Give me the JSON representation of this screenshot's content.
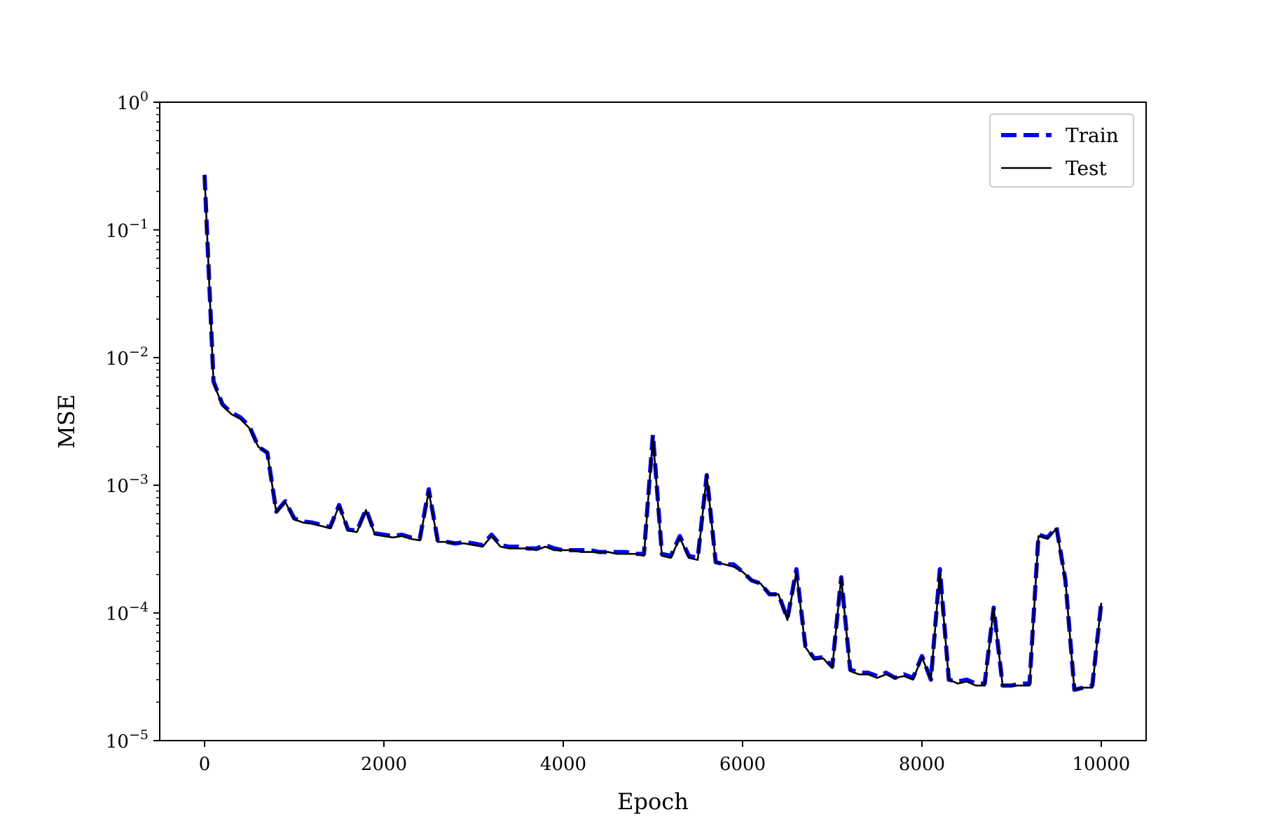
{
  "chart_data": {
    "type": "line",
    "title": "",
    "xlabel": "Epoch",
    "ylabel": "MSE",
    "xlim": [
      -500,
      10500
    ],
    "ylim": [
      1e-05,
      1
    ],
    "yscale": "log",
    "grid": false,
    "legend_position": "top-right",
    "xticks": [
      0,
      2000,
      4000,
      6000,
      8000,
      10000
    ],
    "xtick_labels": [
      "0",
      "2000",
      "4000",
      "6000",
      "8000",
      "10000"
    ],
    "yticks": [
      {
        "value": 1,
        "base": "10",
        "exp": "0"
      },
      {
        "value": 0.1,
        "base": "10",
        "exp": "−1"
      },
      {
        "value": 0.01,
        "base": "10",
        "exp": "−2"
      },
      {
        "value": 0.001,
        "base": "10",
        "exp": "−3"
      },
      {
        "value": 0.0001,
        "base": "10",
        "exp": "−4"
      },
      {
        "value": 1e-05,
        "base": "10",
        "exp": "−5"
      }
    ],
    "x": [
      0,
      100,
      200,
      300,
      400,
      500,
      600,
      700,
      800,
      900,
      1000,
      1100,
      1200,
      1300,
      1400,
      1500,
      1600,
      1700,
      1800,
      1900,
      2000,
      2100,
      2200,
      2300,
      2400,
      2500,
      2600,
      2700,
      2800,
      2900,
      3000,
      3100,
      3200,
      3300,
      3400,
      3500,
      3600,
      3700,
      3800,
      3900,
      4000,
      4100,
      4200,
      4300,
      4400,
      4500,
      4600,
      4700,
      4800,
      4900,
      5000,
      5100,
      5200,
      5300,
      5400,
      5500,
      5600,
      5700,
      5800,
      5900,
      6000,
      6100,
      6200,
      6300,
      6400,
      6500,
      6600,
      6700,
      6800,
      6900,
      7000,
      7100,
      7200,
      7300,
      7400,
      7500,
      7600,
      7700,
      7800,
      7900,
      8000,
      8100,
      8200,
      8300,
      8400,
      8500,
      8600,
      8700,
      8800,
      8900,
      9000,
      9100,
      9200,
      9300,
      9400,
      9500,
      9600,
      9700,
      9800,
      9900,
      10000
    ],
    "series": [
      {
        "name": "Train",
        "color": "#0000ff",
        "style": "dashed",
        "values": [
          0.27,
          0.0065,
          0.0043,
          0.0037,
          0.0034,
          0.0029,
          0.002,
          0.0018,
          0.00062,
          0.00075,
          0.00055,
          0.00052,
          0.00051,
          0.00049,
          0.00047,
          0.0007,
          0.00045,
          0.00044,
          0.00065,
          0.00042,
          0.00041,
          0.0004,
          0.00041,
          0.00039,
          0.00038,
          0.00093,
          0.00037,
          0.00036,
          0.00035,
          0.00036,
          0.00035,
          0.00034,
          0.00041,
          0.00034,
          0.00033,
          0.00033,
          0.00032,
          0.00032,
          0.00034,
          0.00032,
          0.00031,
          0.00031,
          0.00031,
          0.00031,
          0.0003,
          0.0003,
          0.0003,
          0.0003,
          0.00029,
          0.00029,
          0.0025,
          0.00029,
          0.00028,
          0.0004,
          0.00028,
          0.00027,
          0.0012,
          0.00025,
          0.00024,
          0.00024,
          0.00021,
          0.00018,
          0.00017,
          0.00014,
          0.00014,
          9e-05,
          0.00022,
          5.5e-05,
          4.4e-05,
          4.5e-05,
          3.8e-05,
          0.00019,
          3.6e-05,
          3.4e-05,
          3.4e-05,
          3.2e-05,
          3.4e-05,
          3.1e-05,
          3.3e-05,
          3.1e-05,
          4.6e-05,
          3e-05,
          0.00022,
          3e-05,
          2.9e-05,
          3e-05,
          2.8e-05,
          2.8e-05,
          0.00011,
          2.7e-05,
          2.7e-05,
          2.8e-05,
          2.8e-05,
          0.00041,
          0.00039,
          0.00047,
          0.00018,
          2.5e-05,
          2.6e-05,
          2.7e-05,
          0.00012
        ]
      },
      {
        "name": "Test",
        "color": "#000000",
        "style": "solid",
        "values": [
          0.27,
          0.0063,
          0.0042,
          0.0036,
          0.0033,
          0.0028,
          0.002,
          0.0018,
          0.00061,
          0.00074,
          0.00054,
          0.00051,
          0.0005,
          0.00048,
          0.00046,
          0.00069,
          0.00044,
          0.00043,
          0.00064,
          0.00041,
          0.0004,
          0.00039,
          0.0004,
          0.00038,
          0.00037,
          0.0009,
          0.00036,
          0.00036,
          0.00035,
          0.00035,
          0.00034,
          0.00033,
          0.0004,
          0.00033,
          0.00032,
          0.00032,
          0.00032,
          0.00031,
          0.00033,
          0.00031,
          0.00031,
          0.00031,
          0.0003,
          0.0003,
          0.0003,
          0.0003,
          0.00029,
          0.00029,
          0.00029,
          0.00028,
          0.0024,
          0.00028,
          0.00027,
          0.00039,
          0.00027,
          0.00026,
          0.0012,
          0.00025,
          0.00024,
          0.00023,
          0.00021,
          0.00018,
          0.00017,
          0.00014,
          0.00014,
          8.8e-05,
          0.00021,
          5.4e-05,
          4.3e-05,
          4.4e-05,
          3.7e-05,
          0.00019,
          3.5e-05,
          3.3e-05,
          3.3e-05,
          3.1e-05,
          3.3e-05,
          3.1e-05,
          3.2e-05,
          3e-05,
          4.5e-05,
          3e-05,
          0.00021,
          3e-05,
          2.8e-05,
          2.9e-05,
          2.7e-05,
          2.7e-05,
          0.00011,
          2.7e-05,
          2.7e-05,
          2.7e-05,
          2.7e-05,
          0.0004,
          0.00038,
          0.00046,
          0.00018,
          2.5e-05,
          2.6e-05,
          2.6e-05,
          0.00012
        ]
      }
    ]
  }
}
